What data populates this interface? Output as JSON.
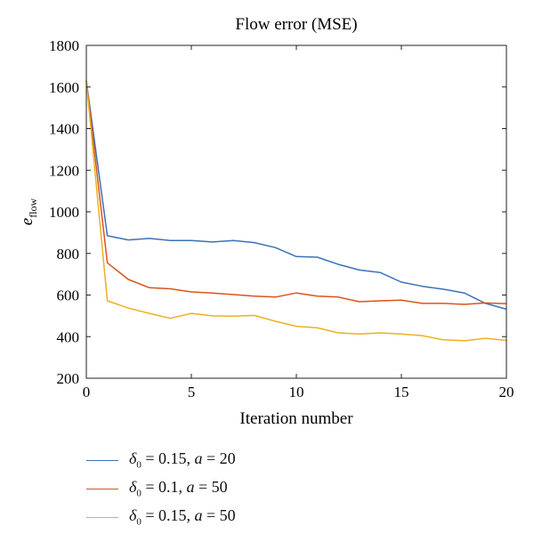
{
  "chart_data": {
    "type": "line",
    "title": "Flow error (MSE)",
    "xlabel": "Iteration number",
    "ylabel": "e_flow",
    "ylabel_main": "e",
    "ylabel_sub": "flow",
    "xlim": [
      0,
      20
    ],
    "ylim": [
      200,
      1800
    ],
    "xticks": [
      0,
      5,
      10,
      15,
      20
    ],
    "yticks": [
      200,
      400,
      600,
      800,
      1000,
      1200,
      1400,
      1600,
      1800
    ],
    "grid": false,
    "legend_position": "bottom",
    "x": [
      0,
      1,
      2,
      3,
      4,
      5,
      6,
      7,
      8,
      9,
      10,
      11,
      12,
      13,
      14,
      15,
      16,
      17,
      18,
      19,
      20
    ],
    "series": [
      {
        "name": "δ0 = 0.15, a = 20",
        "label_parts": {
          "sym": "δ",
          "sub": "0",
          "rest1": " = 0.15, ",
          "var": "a",
          "rest2": " = 20"
        },
        "color": "#3a72b9",
        "values": [
          1630,
          885,
          865,
          872,
          862,
          862,
          855,
          862,
          852,
          828,
          785,
          782,
          747,
          720,
          708,
          662,
          642,
          628,
          610,
          560,
          532
        ]
      },
      {
        "name": "δ0 = 0.1, a = 50",
        "label_parts": {
          "sym": "δ",
          "sub": "0",
          "rest1": " = 0.1, ",
          "var": "a",
          "rest2": " = 50"
        },
        "color": "#d9541c",
        "values": [
          1630,
          755,
          675,
          635,
          630,
          615,
          610,
          602,
          595,
          590,
          610,
          595,
          590,
          568,
          572,
          575,
          560,
          560,
          555,
          562,
          558
        ]
      },
      {
        "name": "δ0 = 0.15, a = 50",
        "label_parts": {
          "sym": "δ",
          "sub": "0",
          "rest1": " = 0.15, ",
          "var": "a",
          "rest2": " = 50"
        },
        "color": "#edb022",
        "values": [
          1630,
          572,
          537,
          512,
          488,
          512,
          500,
          498,
          502,
          474,
          450,
          442,
          418,
          412,
          418,
          412,
          405,
          385,
          380,
          392,
          382
        ]
      }
    ]
  }
}
